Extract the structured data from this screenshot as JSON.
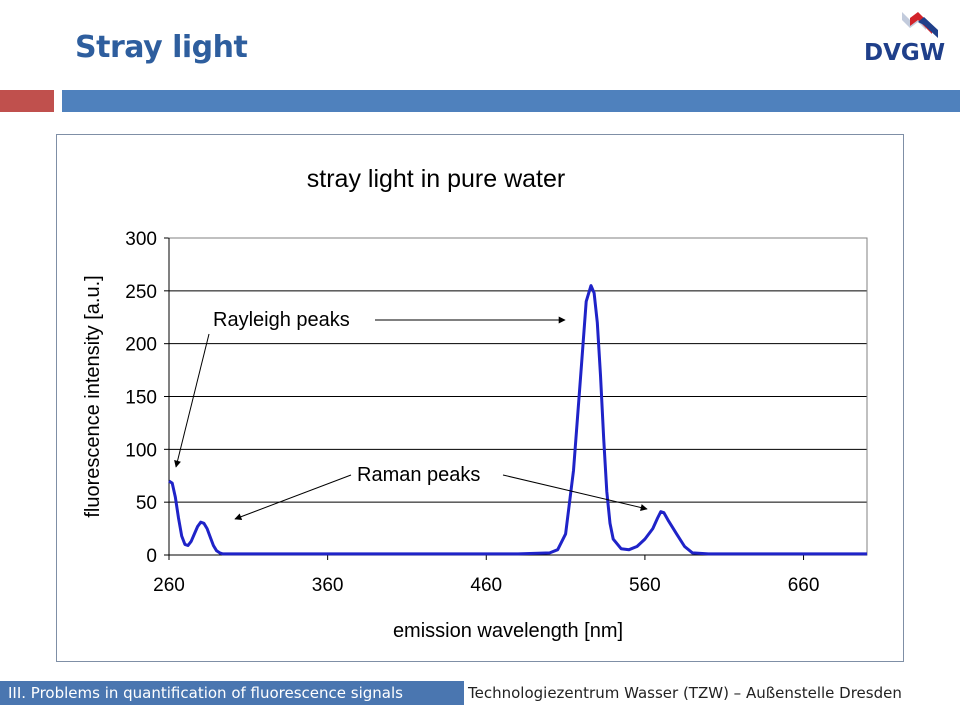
{
  "slide": {
    "title": "Stray light",
    "logo_text": "DVGW",
    "footer_left": "III. Problems in quantification of fluorescence signals",
    "footer_right": "Technologiezentrum Wasser (TZW) – Außenstelle Dresden"
  },
  "colors": {
    "title": "#2e5e9e",
    "accent_blue": "#4f81bd",
    "accent_red": "#c0504d",
    "footer_bg": "#4a76b0",
    "series": "#1f23c8",
    "logo_blue": "#1f3f8a",
    "logo_red": "#d2232a",
    "logo_shadow": "#9aa8c4"
  },
  "chart_data": {
    "type": "line",
    "title": "stray light in pure water",
    "xlabel": "emission wavelength [nm]",
    "ylabel": "fluorescence intensity [a.u.]",
    "xlim": [
      260,
      700
    ],
    "ylim": [
      0,
      300
    ],
    "xticks": [
      260,
      360,
      460,
      560,
      660
    ],
    "yticks": [
      0,
      50,
      100,
      150,
      200,
      250,
      300
    ],
    "grid": "horizontal",
    "series": [
      {
        "x": [
          260,
          262,
          264,
          266,
          268,
          270,
          272,
          274,
          276,
          278,
          280,
          282,
          284,
          286,
          288,
          290,
          292,
          294,
          296,
          298,
          300,
          320,
          360,
          400,
          440,
          480,
          500,
          505,
          510,
          515,
          520,
          523,
          526,
          528,
          530,
          532,
          534,
          536,
          538,
          540,
          545,
          550,
          555,
          560,
          565,
          568,
          570,
          572,
          575,
          580,
          585,
          590,
          600,
          650,
          700
        ],
        "y": [
          70,
          68,
          55,
          35,
          18,
          10,
          9,
          13,
          20,
          27,
          31,
          30,
          25,
          17,
          9,
          4,
          2,
          1,
          1,
          1,
          1,
          1,
          1,
          1,
          1,
          1,
          2,
          5,
          20,
          80,
          180,
          240,
          255,
          248,
          220,
          170,
          110,
          60,
          30,
          15,
          6,
          5,
          8,
          15,
          25,
          35,
          41,
          40,
          32,
          20,
          8,
          2,
          1,
          1,
          1
        ]
      }
    ],
    "annotations": [
      {
        "text": "Rayleigh peaks"
      },
      {
        "text": "Raman peaks"
      }
    ]
  }
}
